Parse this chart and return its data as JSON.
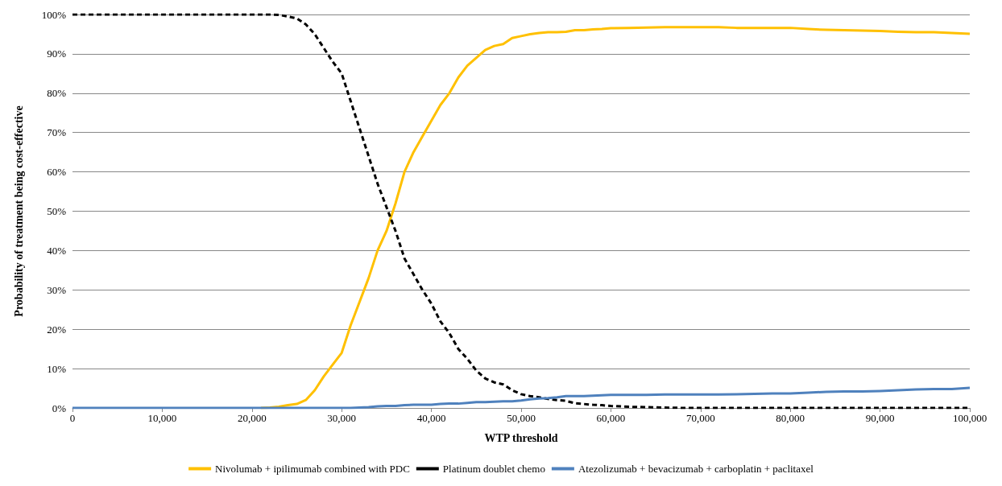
{
  "chart_data": {
    "type": "line",
    "xlabel": "WTP threshold",
    "ylabel": "Probability of treatment being cost-effective",
    "x": [
      0,
      5000,
      10000,
      15000,
      20000,
      21000,
      22000,
      23000,
      24000,
      25000,
      26000,
      27000,
      28000,
      29000,
      30000,
      31000,
      32000,
      33000,
      34000,
      35000,
      36000,
      37000,
      38000,
      39000,
      40000,
      41000,
      42000,
      43000,
      44000,
      45000,
      46000,
      47000,
      48000,
      49000,
      50000,
      51000,
      52000,
      53000,
      54000,
      55000,
      56000,
      57000,
      58000,
      59000,
      60000,
      62000,
      64000,
      66000,
      68000,
      70000,
      72000,
      74000,
      76000,
      78000,
      80000,
      82000,
      84000,
      86000,
      88000,
      90000,
      92000,
      94000,
      96000,
      98000,
      100000
    ],
    "series": [
      {
        "name": "Nivolumab + ipilimumab combined with PDC",
        "color": "#ffc000",
        "line_style": "solid",
        "values": [
          null,
          null,
          null,
          null,
          null,
          0,
          0.1,
          0.3,
          0.7,
          1,
          2,
          4.5,
          8,
          11,
          14,
          21,
          27,
          33,
          40,
          45,
          52,
          60,
          65,
          69,
          73,
          77,
          80,
          84,
          87,
          89,
          91,
          92,
          92.5,
          94,
          94.5,
          95,
          95.3,
          95.5,
          95.5,
          95.6,
          96,
          96,
          96.2,
          96.3,
          96.5,
          96.6,
          96.7,
          96.8,
          96.8,
          96.8,
          96.8,
          96.6,
          96.6,
          96.6,
          96.6,
          96.3,
          96.1,
          96,
          95.9,
          95.8,
          95.6,
          95.5,
          95.5,
          95.3,
          95.1
        ]
      },
      {
        "name": "Platinum doublet chemo",
        "color": "#000000",
        "line_style": "dashed",
        "values": [
          100,
          100,
          100,
          100,
          100,
          100,
          100,
          99.9,
          99.5,
          99,
          97.5,
          95,
          91.5,
          88,
          85,
          78,
          71,
          64,
          57,
          51,
          45,
          38,
          34,
          30,
          26.5,
          22,
          19,
          15,
          12.5,
          9.5,
          7.5,
          6.5,
          6,
          4.5,
          3.5,
          3,
          2.7,
          2.3,
          2,
          1.8,
          1.2,
          1,
          0.8,
          0.7,
          0.5,
          0.3,
          0.2,
          0.1,
          0,
          0,
          0,
          0,
          0,
          0,
          0,
          0,
          0,
          0,
          0,
          0,
          0,
          0,
          0,
          0,
          0
        ]
      },
      {
        "name": "Atezolizumab + bevacizumab + carboplatin + paclitaxel",
        "color": "#4f81bd",
        "line_style": "solid",
        "values": [
          0,
          0,
          0,
          0,
          0,
          0,
          0,
          0,
          0,
          0,
          0,
          0,
          0,
          0,
          0,
          0,
          0.1,
          0.2,
          0.4,
          0.5,
          0.5,
          0.7,
          0.8,
          0.8,
          0.8,
          1,
          1.1,
          1.1,
          1.3,
          1.5,
          1.5,
          1.6,
          1.7,
          1.7,
          1.9,
          2.2,
          2.4,
          2.5,
          2.7,
          3,
          3,
          3,
          3.1,
          3.2,
          3.3,
          3.3,
          3.3,
          3.4,
          3.4,
          3.4,
          3.4,
          3.5,
          3.6,
          3.7,
          3.7,
          3.9,
          4.1,
          4.2,
          4.2,
          4.3,
          4.5,
          4.7,
          4.8,
          4.8,
          5.1
        ]
      }
    ],
    "xlim": [
      0,
      100000
    ],
    "xticks": [
      0,
      {
        "value": 10000,
        "label": "10,000"
      },
      {
        "value": 20000,
        "label": "20,000"
      },
      {
        "value": 30000,
        "label": "30,000"
      },
      {
        "value": 40000,
        "label": "40,000"
      },
      {
        "value": 50000,
        "label": "50,000"
      },
      {
        "value": 60000,
        "label": "60,000"
      },
      {
        "value": 70000,
        "label": "70,000"
      },
      {
        "value": 80000,
        "label": "80,000"
      },
      {
        "value": 90000,
        "label": "90,000"
      },
      {
        "value": 100000,
        "label": "100,000"
      }
    ],
    "ylim": [
      0,
      100
    ],
    "yticks": [
      {
        "value": 0,
        "label": "0%"
      },
      {
        "value": 10,
        "label": "10%"
      },
      {
        "value": 20,
        "label": "20%"
      },
      {
        "value": 30,
        "label": "30%"
      },
      {
        "value": 40,
        "label": "40%"
      },
      {
        "value": 50,
        "label": "50%"
      },
      {
        "value": 60,
        "label": "60%"
      },
      {
        "value": 70,
        "label": "70%"
      },
      {
        "value": 80,
        "label": "80%"
      },
      {
        "value": 90,
        "label": "90%"
      },
      {
        "value": 100,
        "label": "100%"
      }
    ],
    "grid": "y",
    "legend": "bottom",
    "marker": "none"
  }
}
